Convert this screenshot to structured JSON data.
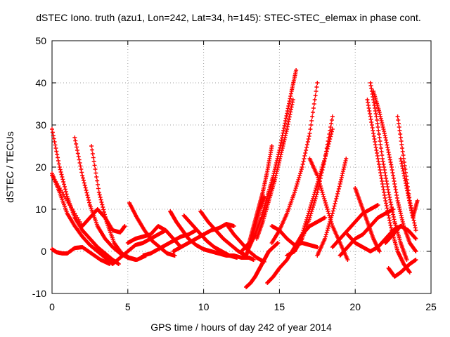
{
  "chart_data": {
    "type": "scatter",
    "title": "dSTEC Iono. truth (azu1, Lon=242, Lat=34, h=145): STEC-STEC_elemax in phase cont.",
    "xlabel": "GPS time / hours of day 242 of year 2014",
    "ylabel": "dSTEC  / TECUs",
    "xlim": [
      0,
      25
    ],
    "ylim": [
      -10,
      50
    ],
    "xticks": [
      0,
      5,
      10,
      15,
      20,
      25
    ],
    "yticks": [
      -10,
      0,
      10,
      20,
      30,
      40,
      50
    ],
    "xtick_labels": [
      "0",
      "5",
      "10",
      "15",
      "20",
      "25"
    ],
    "ytick_labels": [
      "-10",
      "0",
      "10",
      "20",
      "30",
      "40",
      "50"
    ],
    "grid": true,
    "marker": "+",
    "color": "#ff0000",
    "series": [
      {
        "x": [
          0.0,
          0.5,
          1.0,
          1.5,
          2.0,
          2.5,
          3.0,
          3.5,
          4.0,
          4.4
        ],
        "y": [
          29,
          20,
          13,
          8,
          5,
          3,
          1,
          -0.5,
          -2,
          -3
        ]
      },
      {
        "x": [
          0.0,
          0.5,
          1.0,
          1.5,
          2.0,
          2.5,
          3.0,
          3.5,
          4.0
        ],
        "y": [
          18.5,
          14,
          9,
          6,
          3.5,
          1.5,
          0,
          -1.5,
          -3
        ]
      },
      {
        "x": [
          0.0,
          0.3,
          0.7,
          1.0,
          1.5,
          2.0,
          2.6,
          3.2,
          3.8
        ],
        "y": [
          0.5,
          -0.2,
          -0.5,
          -0.5,
          0.8,
          1.0,
          -0.5,
          -2,
          -3
        ]
      },
      {
        "x": [
          1.5,
          2.0,
          2.5,
          3.0,
          3.5,
          4.0,
          4.5,
          5.0,
          5.5
        ],
        "y": [
          27,
          18,
          11,
          6,
          3,
          1,
          -0.5,
          -1.5,
          -2
        ]
      },
      {
        "x": [
          2.6,
          3.1,
          3.6,
          4.1,
          4.6,
          5.1,
          5.6,
          6.2
        ],
        "y": [
          25,
          14,
          7,
          2,
          -0.5,
          -1.5,
          -2,
          -1
        ]
      },
      {
        "x": [
          0.0,
          1.0,
          2.0,
          2.5,
          3.0,
          3.5,
          4.0,
          4.5,
          4.8
        ],
        "y": [
          18,
          12,
          6,
          8,
          10,
          8,
          5,
          4.5,
          6
        ]
      },
      {
        "x": [
          4.0,
          4.5,
          5.0,
          5.5,
          6.0,
          6.5,
          7.0,
          7.5
        ],
        "y": [
          -3,
          -1.5,
          0,
          1.5,
          2,
          3,
          4,
          5
        ]
      },
      {
        "x": [
          5.1,
          5.6,
          6.1,
          6.6,
          7.1,
          7.6,
          8.1
        ],
        "y": [
          11.5,
          8,
          5,
          2.5,
          1,
          -0.5,
          -1
        ]
      },
      {
        "x": [
          5.0,
          5.5,
          6.0,
          6.5,
          7.0,
          7.5,
          8.0,
          8.5
        ],
        "y": [
          2,
          3,
          3.5,
          4,
          6,
          5,
          3,
          1
        ]
      },
      {
        "x": [
          6.0,
          6.5,
          7.0,
          7.5,
          8.0,
          8.5,
          9.0,
          9.5
        ],
        "y": [
          -1,
          -0.5,
          0.5,
          1.5,
          2.5,
          3.5,
          4,
          5
        ]
      },
      {
        "x": [
          7.8,
          8.2,
          8.6,
          9.0,
          9.5,
          10.0,
          10.5,
          11.0
        ],
        "y": [
          9.5,
          7,
          5,
          3,
          1.5,
          0.5,
          0,
          -0.5
        ]
      },
      {
        "x": [
          8.7,
          9.2,
          9.7,
          10.2,
          10.7,
          11.2,
          11.7,
          12.2
        ],
        "y": [
          8.5,
          6.5,
          4.5,
          2.5,
          1,
          0,
          -1,
          -1.5
        ]
      },
      {
        "x": [
          9.8,
          10.3,
          10.8,
          11.3,
          11.8,
          12.3,
          12.8
        ],
        "y": [
          9.5,
          7,
          5,
          3,
          1.5,
          0,
          -1
        ]
      },
      {
        "x": [
          8.0,
          8.5,
          9.0,
          9.5,
          10.0,
          10.5,
          11.0,
          11.5,
          12.0
        ],
        "y": [
          0,
          1,
          2,
          3,
          4,
          5,
          5.5,
          6.5,
          6
        ]
      },
      {
        "x": [
          11.5,
          12.0,
          12.5,
          13.0,
          13.5,
          14.0
        ],
        "y": [
          6.5,
          4,
          2,
          0,
          -1.5,
          -2.5
        ]
      },
      {
        "x": [
          10.0,
          10.5,
          11.0,
          11.5,
          12.0,
          12.5,
          13.0,
          13.3
        ],
        "y": [
          0.5,
          0,
          -0.5,
          -1,
          -1,
          -1.5,
          -1.5,
          -2
        ]
      },
      {
        "x": [
          12.8,
          13.1,
          13.4,
          13.7,
          14.0,
          14.3,
          14.6,
          14.9
        ],
        "y": [
          -8.5,
          -7.5,
          -6,
          -4,
          -2,
          0,
          1,
          2
        ]
      },
      {
        "x": [
          12.5,
          13.0,
          13.3,
          13.6,
          13.9,
          14.2,
          14.5
        ],
        "y": [
          0,
          2,
          6,
          10,
          14,
          19,
          25
        ]
      },
      {
        "x": [
          12.8,
          13.1,
          13.4,
          13.7,
          14.0
        ],
        "y": [
          -1,
          2,
          6,
          10,
          13
        ]
      },
      {
        "x": [
          13.0,
          13.4,
          13.8,
          14.2,
          14.6,
          15.0,
          15.4,
          15.8,
          16.1
        ],
        "y": [
          1,
          4,
          8,
          13,
          18,
          24,
          31,
          38,
          43
        ]
      },
      {
        "x": [
          13.5,
          13.9,
          14.3,
          14.7,
          15.1,
          15.5,
          15.9
        ],
        "y": [
          3,
          7,
          12,
          17,
          23,
          29,
          36
        ]
      },
      {
        "x": [
          14.5,
          15.0,
          15.5,
          16.0,
          16.5,
          17.0,
          17.5
        ],
        "y": [
          2,
          5,
          9,
          14,
          20,
          28,
          40
        ]
      },
      {
        "x": [
          14.5,
          15.0,
          15.5,
          16.0,
          16.5,
          17.0,
          17.5
        ],
        "y": [
          6,
          5,
          3,
          1.5,
          2,
          1.5,
          1
        ]
      },
      {
        "x": [
          14.2,
          14.6,
          15.0,
          15.5,
          16.0,
          16.5,
          17.0,
          17.5,
          18.0
        ],
        "y": [
          -7.5,
          -6,
          -4,
          -2,
          1,
          4,
          6,
          7,
          8
        ]
      },
      {
        "x": [
          15.5,
          16.0,
          16.5,
          17.0,
          17.5,
          18.0,
          18.5
        ],
        "y": [
          -1,
          0,
          3,
          8,
          14,
          22,
          32
        ]
      },
      {
        "x": [
          16.0,
          16.5,
          17.0,
          17.5,
          18.0,
          18.5
        ],
        "y": [
          0,
          4,
          10,
          16,
          22,
          29
        ]
      },
      {
        "x": [
          17.0,
          17.5,
          18.0,
          18.5,
          19.0,
          19.5
        ],
        "y": [
          22,
          18,
          12,
          6,
          2,
          -2
        ]
      },
      {
        "x": [
          17.5,
          18.0,
          18.5,
          19.0,
          19.4
        ],
        "y": [
          -1,
          3,
          9,
          16,
          22
        ]
      },
      {
        "x": [
          18.5,
          19.0,
          19.5,
          20.0,
          20.5,
          21.0,
          21.5
        ],
        "y": [
          1,
          3,
          5,
          7,
          9,
          10,
          11
        ]
      },
      {
        "x": [
          19.0,
          19.5,
          20.0,
          20.5,
          21.0,
          21.5,
          22.0,
          22.5
        ],
        "y": [
          -1,
          1,
          3,
          4,
          6,
          8,
          9,
          10
        ]
      },
      {
        "x": [
          19.5,
          20.0,
          20.5,
          21.0,
          21.5,
          22.0,
          22.5,
          23.0
        ],
        "y": [
          4,
          2,
          1,
          0,
          1,
          3,
          5,
          6
        ]
      },
      {
        "x": [
          20.8,
          21.2,
          21.6,
          22.0,
          22.4,
          22.8,
          23.2,
          23.6
        ],
        "y": [
          36,
          28,
          20,
          12,
          5,
          0,
          -3,
          -5
        ]
      },
      {
        "x": [
          21.0,
          21.4,
          21.8,
          22.2,
          22.6,
          23.0,
          23.4
        ],
        "y": [
          40,
          32,
          22,
          14,
          7,
          2,
          -2
        ]
      },
      {
        "x": [
          21.2,
          21.6,
          22.0,
          22.4,
          22.8,
          23.2,
          23.6,
          24.0
        ],
        "y": [
          38,
          33,
          27,
          20,
          12,
          6,
          2,
          0
        ]
      },
      {
        "x": [
          20.0,
          20.4,
          20.8,
          21.2,
          21.6
        ],
        "y": [
          15,
          11,
          7,
          3,
          0
        ]
      },
      {
        "x": [
          22.2,
          22.6,
          23.0,
          23.3,
          23.6,
          24.0
        ],
        "y": [
          -4,
          -6,
          -5,
          -4,
          -3,
          -2
        ]
      },
      {
        "x": [
          22.8,
          23.2,
          23.6,
          24.0
        ],
        "y": [
          32,
          22,
          12,
          5
        ]
      },
      {
        "x": [
          23.0,
          23.4,
          23.8,
          24.1
        ],
        "y": [
          22,
          15,
          8,
          12
        ]
      },
      {
        "x": [
          22.0,
          22.5,
          23.0,
          23.5,
          24.0
        ],
        "y": [
          2,
          4,
          6,
          5,
          3
        ]
      }
    ]
  }
}
